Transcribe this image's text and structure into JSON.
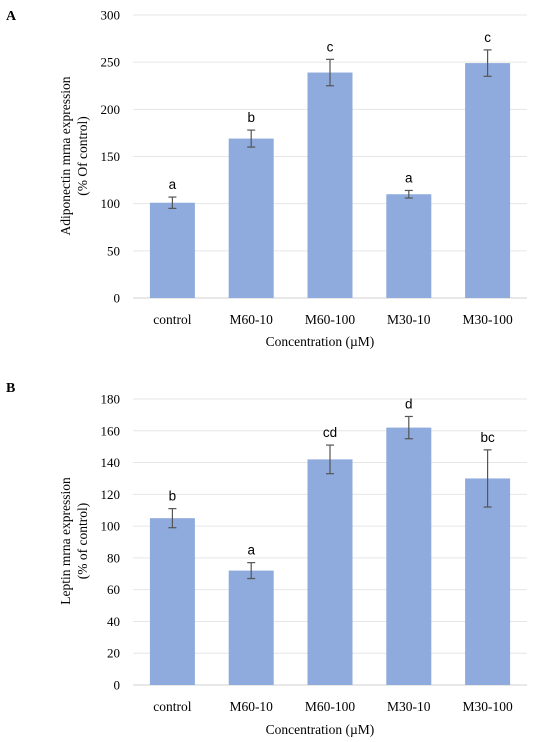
{
  "chart_data": [
    {
      "type": "bar",
      "panel_label": "A",
      "categories": [
        "control",
        "M60-10",
        "M60-100",
        "M30-10",
        "M30-100"
      ],
      "values": [
        101,
        169,
        239,
        110,
        249
      ],
      "errors": [
        6,
        9,
        14,
        4,
        14
      ],
      "significance": [
        "a",
        "b",
        "c",
        "a",
        "c"
      ],
      "ylim": [
        0,
        300
      ],
      "yticks": [
        0,
        50,
        100,
        150,
        200,
        250,
        300
      ],
      "ylabel_line1": "Adiponectin mrna expression",
      "ylabel_line2": "(% Of control)",
      "xlabel": "Concentration (µM)",
      "grid": true,
      "bar_color": "#8faadc"
    },
    {
      "type": "bar",
      "panel_label": "B",
      "categories": [
        "control",
        "M60-10",
        "M60-100",
        "M30-10",
        "M30-100"
      ],
      "values": [
        105,
        72,
        142,
        162,
        130
      ],
      "errors": [
        6,
        5,
        9,
        7,
        18
      ],
      "significance": [
        "b",
        "a",
        "cd",
        "d",
        "bc"
      ],
      "ylim": [
        0,
        180
      ],
      "yticks": [
        0,
        20,
        40,
        60,
        80,
        100,
        120,
        140,
        160,
        180
      ],
      "ylabel_line1": "Leptin mrna expression",
      "ylabel_line2": "(% of control)",
      "xlabel": "Concentration (µM)",
      "grid": true,
      "bar_color": "#8faadc"
    }
  ]
}
